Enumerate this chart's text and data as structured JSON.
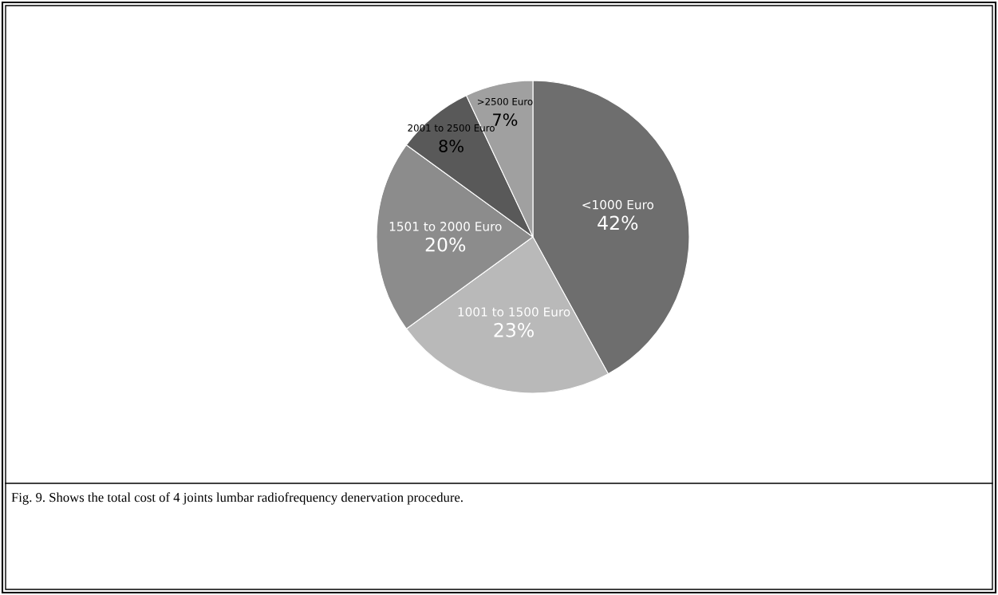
{
  "chart_data": {
    "type": "pie",
    "categories": [
      "<1000 Euro",
      "1001 to 1500 Euro",
      "1501 to 2000 Euro",
      "2001 to 2500 Euro",
      ">2500 Euro"
    ],
    "values": [
      42,
      23,
      20,
      8,
      7
    ],
    "colors": [
      "#6e6e6e",
      "#b9b9b9",
      "#8c8c8c",
      "#595959",
      "#a0a0a0"
    ],
    "legend": false,
    "value_labels": [
      "42%",
      "23%",
      "20%",
      "8%",
      "7%"
    ],
    "annotations": [
      "Fig. 9. Shows the total cost of 4 joints lumbar radiofrequency denervation procedure."
    ]
  }
}
